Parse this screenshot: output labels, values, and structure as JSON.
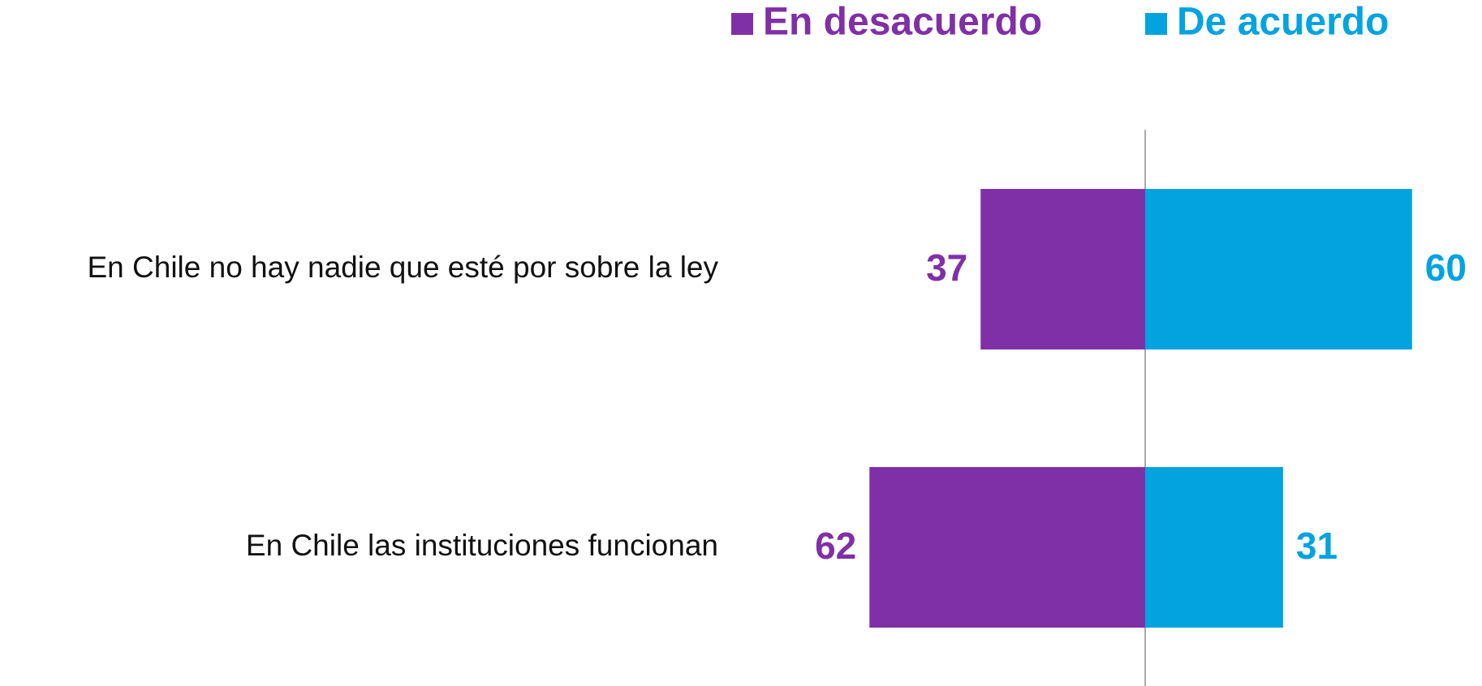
{
  "chart_data": {
    "type": "diverging-bar",
    "categories": [
      "En Chile no hay nadie que esté por sobre la ley",
      "En Chile las instituciones funcionan"
    ],
    "series": [
      {
        "name": "En desacuerdo",
        "color": "#8030a6",
        "values": [
          37,
          62
        ]
      },
      {
        "name": "De acuerdo",
        "color": "#03a3e0",
        "values": [
          60,
          31
        ]
      }
    ],
    "xlim": [
      -75,
      75
    ]
  }
}
